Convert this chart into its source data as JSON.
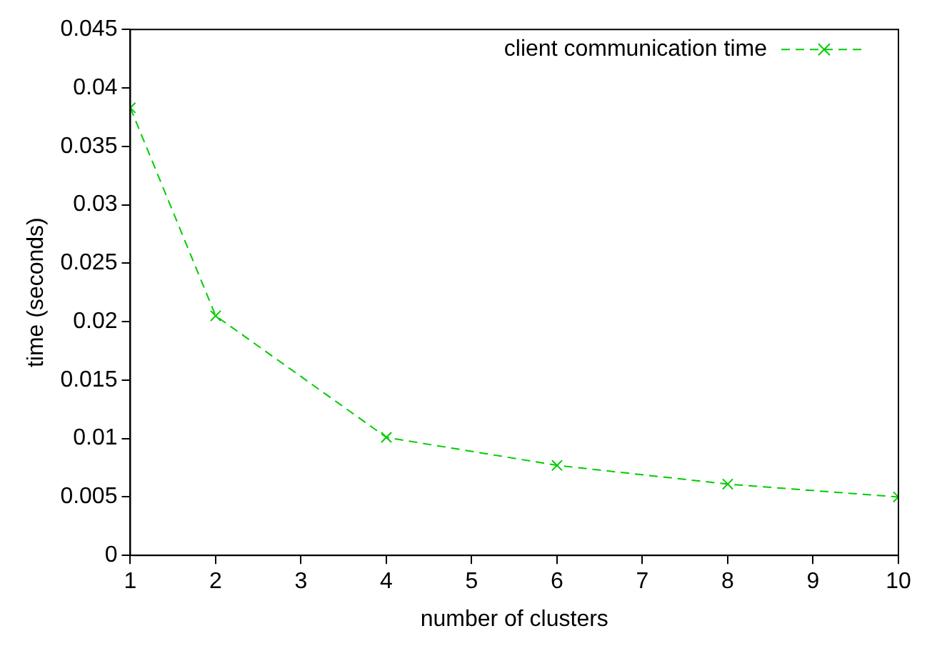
{
  "chart_data": {
    "type": "line",
    "xlabel": "number of clusters",
    "ylabel": "time (seconds)",
    "x": [
      1,
      2,
      4,
      6,
      8,
      10
    ],
    "series": [
      {
        "name": "client communication time",
        "color": "#00cc00",
        "values": [
          0.0383,
          0.0205,
          0.0101,
          0.0077,
          0.0061,
          0.005
        ]
      }
    ],
    "xlim": [
      1,
      10
    ],
    "xticks": [
      1,
      2,
      3,
      4,
      5,
      6,
      7,
      8,
      9,
      10
    ],
    "ylim": [
      0,
      0.045
    ],
    "yticks": [
      0,
      0.005,
      0.01,
      0.015,
      0.02,
      0.025,
      0.03,
      0.035,
      0.04,
      0.045
    ],
    "grid": false,
    "legend": "top right",
    "marker": "cross",
    "line_style": "dashed"
  }
}
